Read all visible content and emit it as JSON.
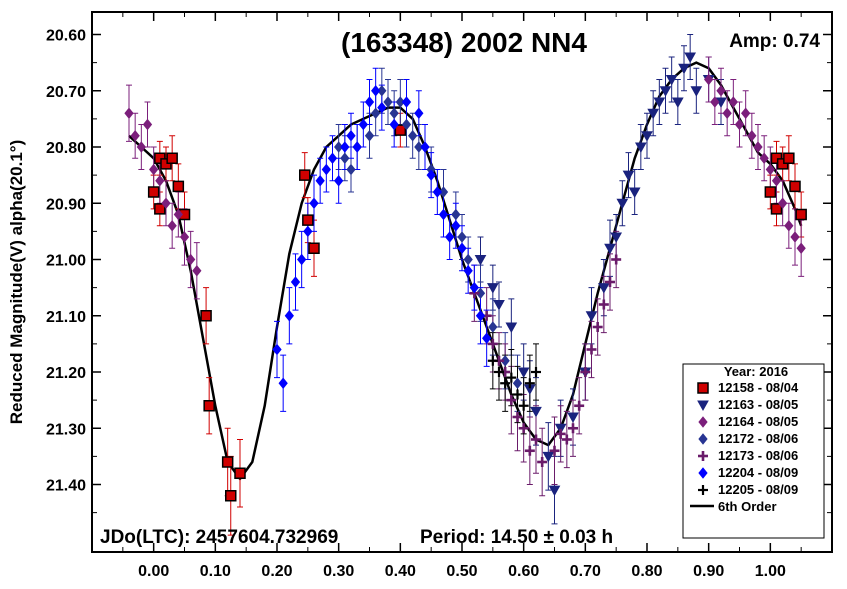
{
  "chart_data": {
    "type": "scatter",
    "title": "(163348) 2002 NN4",
    "amplitude_label": "Amp: 0.74",
    "jd_label": "JDo(LTC): 2457604.732969",
    "period_label": "Period: 14.50 ± 0.03 h",
    "ylabel": "Reduced Magnitude(V) alpha(20.1°)",
    "xlabel": "",
    "xlim": [
      -0.1,
      1.1
    ],
    "ylim": [
      21.52,
      20.56
    ],
    "y_inverted": true,
    "x_ticks": [
      "0.00",
      "0.10",
      "0.20",
      "0.30",
      "0.40",
      "0.50",
      "0.60",
      "0.70",
      "0.80",
      "0.90",
      "1.00"
    ],
    "x_tick_values": [
      0.0,
      0.1,
      0.2,
      0.3,
      0.4,
      0.5,
      0.6,
      0.7,
      0.8,
      0.9,
      1.0
    ],
    "y_ticks": [
      "20.60",
      "20.70",
      "20.80",
      "20.90",
      "21.00",
      "21.10",
      "21.20",
      "21.30",
      "21.40"
    ],
    "y_tick_values": [
      20.6,
      20.7,
      20.8,
      20.9,
      21.0,
      21.1,
      21.2,
      21.3,
      21.4
    ],
    "legend": {
      "title": "Year: 2016",
      "placement": "bottom-right"
    },
    "series": [
      {
        "name": "12158 - 08/04",
        "marker": "square",
        "color": "#d00000",
        "edge": "#000000",
        "points": [
          [
            0.0,
            20.88,
            0.03
          ],
          [
            0.01,
            20.91,
            0.03
          ],
          [
            0.01,
            20.82,
            0.03
          ],
          [
            0.02,
            20.83,
            0.03
          ],
          [
            0.03,
            20.82,
            0.04
          ],
          [
            0.04,
            20.87,
            0.04
          ],
          [
            0.05,
            20.92,
            0.04
          ],
          [
            0.085,
            21.1,
            0.05
          ],
          [
            0.09,
            21.26,
            0.05
          ],
          [
            0.12,
            21.36,
            0.06
          ],
          [
            0.125,
            21.42,
            0.07
          ],
          [
            0.14,
            21.38,
            0.06
          ],
          [
            0.245,
            20.85,
            0.04
          ],
          [
            0.25,
            20.93,
            0.04
          ],
          [
            0.26,
            20.98,
            0.05
          ],
          [
            0.4,
            20.77,
            0.03
          ],
          [
            1.0,
            20.88,
            0.03
          ],
          [
            1.01,
            20.91,
            0.03
          ],
          [
            1.01,
            20.82,
            0.03
          ],
          [
            1.02,
            20.83,
            0.03
          ],
          [
            1.03,
            20.82,
            0.04
          ],
          [
            1.04,
            20.87,
            0.04
          ],
          [
            1.05,
            20.92,
            0.04
          ]
        ]
      },
      {
        "name": "12163 - 08/05",
        "marker": "triangle-down",
        "color": "#1a237e",
        "edge": "#1a237e",
        "points": [
          [
            0.53,
            21.0,
            0.04
          ],
          [
            0.55,
            21.05,
            0.04
          ],
          [
            0.56,
            21.08,
            0.04
          ],
          [
            0.58,
            21.12,
            0.05
          ],
          [
            0.6,
            21.2,
            0.05
          ],
          [
            0.61,
            21.23,
            0.05
          ],
          [
            0.62,
            21.27,
            0.06
          ],
          [
            0.64,
            21.35,
            0.06
          ],
          [
            0.65,
            21.41,
            0.06
          ],
          [
            0.66,
            21.3,
            0.05
          ],
          [
            0.68,
            21.28,
            0.05
          ],
          [
            0.7,
            21.2,
            0.05
          ],
          [
            0.71,
            21.1,
            0.05
          ],
          [
            0.73,
            21.05,
            0.05
          ],
          [
            0.74,
            20.98,
            0.05
          ],
          [
            0.75,
            20.96,
            0.04
          ],
          [
            0.76,
            20.9,
            0.04
          ],
          [
            0.77,
            20.85,
            0.04
          ],
          [
            0.78,
            20.88,
            0.04
          ],
          [
            0.79,
            20.8,
            0.04
          ],
          [
            0.8,
            20.78,
            0.04
          ],
          [
            0.81,
            20.74,
            0.04
          ],
          [
            0.82,
            20.72,
            0.04
          ],
          [
            0.83,
            20.7,
            0.04
          ],
          [
            0.84,
            20.68,
            0.04
          ],
          [
            0.85,
            20.72,
            0.04
          ],
          [
            0.86,
            20.66,
            0.04
          ],
          [
            0.87,
            20.64,
            0.04
          ],
          [
            0.88,
            20.7,
            0.04
          ],
          [
            0.9,
            20.68,
            0.04
          ],
          [
            0.92,
            20.72,
            0.04
          ]
        ]
      },
      {
        "name": "12164 - 08/05",
        "marker": "diamond",
        "color": "#7b1f7b",
        "edge": "#7b1f7b",
        "points": [
          [
            -0.04,
            20.74,
            0.05
          ],
          [
            -0.03,
            20.78,
            0.04
          ],
          [
            -0.02,
            20.8,
            0.04
          ],
          [
            -0.01,
            20.76,
            0.04
          ],
          [
            0.0,
            20.84,
            0.04
          ],
          [
            0.01,
            20.86,
            0.04
          ],
          [
            0.02,
            20.9,
            0.04
          ],
          [
            0.03,
            20.94,
            0.04
          ],
          [
            0.04,
            20.92,
            0.04
          ],
          [
            0.05,
            20.96,
            0.05
          ],
          [
            0.06,
            21.0,
            0.05
          ],
          [
            0.07,
            21.02,
            0.05
          ],
          [
            0.9,
            20.68,
            0.04
          ],
          [
            0.91,
            20.72,
            0.04
          ],
          [
            0.92,
            20.7,
            0.04
          ],
          [
            0.93,
            20.74,
            0.04
          ],
          [
            0.94,
            20.72,
            0.04
          ],
          [
            0.95,
            20.76,
            0.04
          ],
          [
            0.96,
            20.74,
            0.04
          ],
          [
            0.97,
            20.78,
            0.04
          ],
          [
            0.98,
            20.8,
            0.04
          ],
          [
            0.99,
            20.82,
            0.04
          ],
          [
            1.0,
            20.84,
            0.04
          ],
          [
            1.01,
            20.86,
            0.04
          ],
          [
            1.02,
            20.9,
            0.04
          ],
          [
            1.03,
            20.94,
            0.04
          ],
          [
            1.04,
            20.96,
            0.05
          ],
          [
            1.05,
            20.98,
            0.05
          ]
        ]
      },
      {
        "name": "12172 - 08/06",
        "marker": "diamond",
        "color": "#283593",
        "edge": "#283593",
        "points": [
          [
            0.3,
            20.8,
            0.04
          ],
          [
            0.31,
            20.82,
            0.04
          ],
          [
            0.32,
            20.84,
            0.04
          ],
          [
            0.33,
            20.8,
            0.04
          ],
          [
            0.35,
            20.78,
            0.04
          ],
          [
            0.36,
            20.74,
            0.04
          ],
          [
            0.37,
            20.7,
            0.04
          ],
          [
            0.38,
            20.72,
            0.04
          ],
          [
            0.39,
            20.74,
            0.04
          ],
          [
            0.4,
            20.72,
            0.04
          ],
          [
            0.41,
            20.76,
            0.04
          ],
          [
            0.42,
            20.78,
            0.04
          ],
          [
            0.43,
            20.8,
            0.04
          ],
          [
            0.45,
            20.84,
            0.04
          ],
          [
            0.47,
            20.88,
            0.04
          ],
          [
            0.49,
            20.92,
            0.04
          ],
          [
            0.5,
            20.96,
            0.04
          ],
          [
            0.51,
            21.0,
            0.04
          ],
          [
            0.53,
            21.06,
            0.05
          ],
          [
            0.55,
            21.12,
            0.05
          ],
          [
            0.57,
            21.18,
            0.05
          ],
          [
            0.59,
            21.22,
            0.05
          ]
        ]
      },
      {
        "name": "12173 - 08/06",
        "marker": "plus",
        "color": "#6a1b6a",
        "edge": "#6a1b6a",
        "points": [
          [
            0.52,
            21.06,
            0.05
          ],
          [
            0.54,
            21.1,
            0.05
          ],
          [
            0.55,
            21.15,
            0.05
          ],
          [
            0.56,
            21.18,
            0.05
          ],
          [
            0.57,
            21.2,
            0.05
          ],
          [
            0.58,
            21.25,
            0.06
          ],
          [
            0.59,
            21.28,
            0.06
          ],
          [
            0.6,
            21.3,
            0.06
          ],
          [
            0.61,
            21.34,
            0.06
          ],
          [
            0.62,
            21.32,
            0.06
          ],
          [
            0.63,
            21.36,
            0.06
          ],
          [
            0.65,
            21.34,
            0.06
          ],
          [
            0.66,
            21.31,
            0.05
          ],
          [
            0.67,
            21.32,
            0.05
          ],
          [
            0.68,
            21.3,
            0.05
          ],
          [
            0.69,
            21.26,
            0.05
          ],
          [
            0.7,
            21.2,
            0.05
          ],
          [
            0.71,
            21.16,
            0.05
          ],
          [
            0.72,
            21.12,
            0.05
          ],
          [
            0.73,
            21.08,
            0.05
          ],
          [
            0.74,
            21.04,
            0.05
          ],
          [
            0.75,
            21.0,
            0.05
          ]
        ]
      },
      {
        "name": "12204 - 08/09",
        "marker": "diamond",
        "color": "#0000ff",
        "edge": "#0000ff",
        "points": [
          [
            0.2,
            21.16,
            0.05
          ],
          [
            0.21,
            21.22,
            0.05
          ],
          [
            0.22,
            21.1,
            0.05
          ],
          [
            0.23,
            21.04,
            0.05
          ],
          [
            0.24,
            21.0,
            0.05
          ],
          [
            0.25,
            20.95,
            0.05
          ],
          [
            0.26,
            20.9,
            0.05
          ],
          [
            0.27,
            20.86,
            0.04
          ],
          [
            0.28,
            20.84,
            0.04
          ],
          [
            0.29,
            20.82,
            0.04
          ],
          [
            0.3,
            20.86,
            0.04
          ],
          [
            0.31,
            20.8,
            0.04
          ],
          [
            0.32,
            20.78,
            0.04
          ],
          [
            0.33,
            20.8,
            0.04
          ],
          [
            0.34,
            20.76,
            0.04
          ],
          [
            0.35,
            20.72,
            0.04
          ],
          [
            0.36,
            20.7,
            0.04
          ],
          [
            0.37,
            20.73,
            0.04
          ],
          [
            0.39,
            20.76,
            0.04
          ],
          [
            0.41,
            20.72,
            0.04
          ],
          [
            0.43,
            20.74,
            0.04
          ],
          [
            0.44,
            20.8,
            0.04
          ],
          [
            0.45,
            20.85,
            0.04
          ],
          [
            0.46,
            20.88,
            0.04
          ],
          [
            0.47,
            20.92,
            0.04
          ],
          [
            0.48,
            20.96,
            0.04
          ],
          [
            0.49,
            20.94,
            0.04
          ],
          [
            0.5,
            20.98,
            0.04
          ],
          [
            0.51,
            21.02,
            0.04
          ],
          [
            0.52,
            21.05,
            0.04
          ],
          [
            0.53,
            21.1,
            0.05
          ],
          [
            0.54,
            21.14,
            0.05
          ]
        ]
      },
      {
        "name": "12205 - 08/09",
        "marker": "cross",
        "color": "#000000",
        "edge": "#000000",
        "points": [
          [
            0.55,
            21.18,
            0.05
          ],
          [
            0.56,
            21.2,
            0.05
          ],
          [
            0.57,
            21.22,
            0.05
          ],
          [
            0.58,
            21.21,
            0.05
          ],
          [
            0.59,
            21.24,
            0.05
          ],
          [
            0.6,
            21.26,
            0.05
          ],
          [
            0.61,
            21.22,
            0.05
          ],
          [
            0.62,
            21.2,
            0.05
          ]
        ]
      }
    ],
    "fit": {
      "name": "6th Order",
      "color": "#000000",
      "points": [
        [
          -0.04,
          20.78
        ],
        [
          -0.02,
          20.8
        ],
        [
          0.0,
          20.82
        ],
        [
          0.02,
          20.86
        ],
        [
          0.04,
          20.92
        ],
        [
          0.06,
          21.02
        ],
        [
          0.08,
          21.14
        ],
        [
          0.1,
          21.26
        ],
        [
          0.12,
          21.36
        ],
        [
          0.14,
          21.39
        ],
        [
          0.16,
          21.36
        ],
        [
          0.18,
          21.26
        ],
        [
          0.2,
          21.12
        ],
        [
          0.22,
          20.99
        ],
        [
          0.24,
          20.9
        ],
        [
          0.26,
          20.84
        ],
        [
          0.28,
          20.8
        ],
        [
          0.3,
          20.78
        ],
        [
          0.32,
          20.76
        ],
        [
          0.34,
          20.75
        ],
        [
          0.36,
          20.74
        ],
        [
          0.38,
          20.73
        ],
        [
          0.4,
          20.73
        ],
        [
          0.42,
          20.75
        ],
        [
          0.44,
          20.8
        ],
        [
          0.46,
          20.86
        ],
        [
          0.48,
          20.93
        ],
        [
          0.5,
          21.0
        ],
        [
          0.52,
          21.06
        ],
        [
          0.54,
          21.12
        ],
        [
          0.56,
          21.18
        ],
        [
          0.58,
          21.24
        ],
        [
          0.6,
          21.29
        ],
        [
          0.62,
          21.32
        ],
        [
          0.64,
          21.33
        ],
        [
          0.66,
          21.3
        ],
        [
          0.68,
          21.24
        ],
        [
          0.7,
          21.15
        ],
        [
          0.72,
          21.06
        ],
        [
          0.74,
          20.98
        ],
        [
          0.76,
          20.9
        ],
        [
          0.78,
          20.82
        ],
        [
          0.8,
          20.76
        ],
        [
          0.82,
          20.71
        ],
        [
          0.84,
          20.68
        ],
        [
          0.86,
          20.66
        ],
        [
          0.88,
          20.65
        ],
        [
          0.9,
          20.66
        ],
        [
          0.92,
          20.69
        ],
        [
          0.94,
          20.73
        ],
        [
          0.96,
          20.77
        ],
        [
          0.98,
          20.81
        ],
        [
          1.0,
          20.83
        ],
        [
          1.02,
          20.86
        ],
        [
          1.04,
          20.91
        ],
        [
          1.05,
          20.94
        ]
      ]
    }
  }
}
